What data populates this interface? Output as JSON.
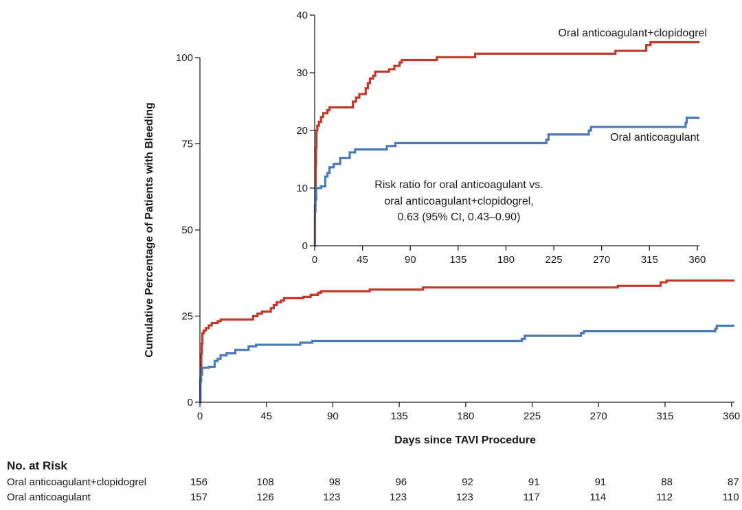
{
  "chart_data": {
    "type": "line",
    "subtype": "kaplan-meier step",
    "xlabel": "Days since TAVI Procedure",
    "ylabel": "Cumulative Percentage of Patients with Bleeding",
    "x_ticks": [
      0,
      45,
      90,
      135,
      180,
      225,
      270,
      315,
      360
    ],
    "x_tick_labels": [
      "0",
      "45",
      "90",
      "135",
      "180",
      "225",
      "270",
      "315",
      "360"
    ],
    "xlim": [
      0,
      362
    ],
    "main": {
      "ylim": [
        0,
        100
      ],
      "y_ticks": [
        0,
        25,
        50,
        75,
        100
      ],
      "y_tick_labels": [
        "0",
        "25",
        "50",
        "75",
        "100"
      ]
    },
    "inset": {
      "ylim": [
        0,
        40
      ],
      "y_ticks": [
        0,
        10,
        20,
        30,
        40
      ],
      "y_tick_labels": [
        "0",
        "10",
        "20",
        "30",
        "40"
      ],
      "annotation_lines": [
        "Risk ratio for oral anticoagulant vs.",
        "oral anticoagulant+clopidogrel,",
        "0.63 (95% CI, 0.43–0.90)"
      ]
    },
    "series": [
      {
        "name": "Oral anticoagulant+clopidogrel",
        "color": "#c0392b",
        "points": [
          [
            0,
            0
          ],
          [
            0.3,
            7
          ],
          [
            0.6,
            10
          ],
          [
            0.9,
            14
          ],
          [
            1.3,
            17
          ],
          [
            1.7,
            20
          ],
          [
            2.5,
            20.8
          ],
          [
            4,
            21.5
          ],
          [
            6,
            22.3
          ],
          [
            8,
            23
          ],
          [
            12,
            23.5
          ],
          [
            14,
            24
          ],
          [
            33,
            24
          ],
          [
            36,
            25
          ],
          [
            39,
            25.7
          ],
          [
            42,
            26.3
          ],
          [
            48,
            27.3
          ],
          [
            50,
            28.2
          ],
          [
            52,
            29
          ],
          [
            55,
            29.5
          ],
          [
            57,
            30.2
          ],
          [
            70,
            30.6
          ],
          [
            75,
            31.2
          ],
          [
            80,
            31.8
          ],
          [
            82,
            32.2
          ],
          [
            115,
            32.7
          ],
          [
            151,
            33.3
          ],
          [
            283,
            33.8
          ],
          [
            312,
            34.8
          ],
          [
            316,
            35.3
          ],
          [
            362,
            35.3
          ]
        ]
      },
      {
        "name": "Oral anticoagulant",
        "color": "#4a7ab8",
        "points": [
          [
            0,
            0
          ],
          [
            0.3,
            6
          ],
          [
            0.8,
            8
          ],
          [
            1.5,
            10
          ],
          [
            6,
            10.3
          ],
          [
            10,
            12
          ],
          [
            12,
            12.6
          ],
          [
            14,
            13.6
          ],
          [
            18,
            14.2
          ],
          [
            24,
            15.2
          ],
          [
            33,
            16.2
          ],
          [
            38,
            16.7
          ],
          [
            68,
            17.3
          ],
          [
            76,
            17.8
          ],
          [
            218,
            18.4
          ],
          [
            220,
            19.3
          ],
          [
            258,
            20
          ],
          [
            260,
            20.6
          ],
          [
            349,
            21.3
          ],
          [
            350,
            22.2
          ],
          [
            362,
            22.2
          ]
        ]
      }
    ],
    "inset_labels": [
      "Oral anticoagulant+clopidogrel",
      "Oral anticoagulant"
    ]
  },
  "risk_table": {
    "title": "No. at Risk",
    "rows": [
      {
        "label": "Oral anticoagulant+clopidogrel",
        "values": [
          "156",
          "108",
          "98",
          "96",
          "92",
          "91",
          "91",
          "88",
          "87"
        ]
      },
      {
        "label": "Oral anticoagulant",
        "values": [
          "157",
          "126",
          "123",
          "123",
          "123",
          "117",
          "114",
          "112",
          "110"
        ]
      }
    ]
  }
}
